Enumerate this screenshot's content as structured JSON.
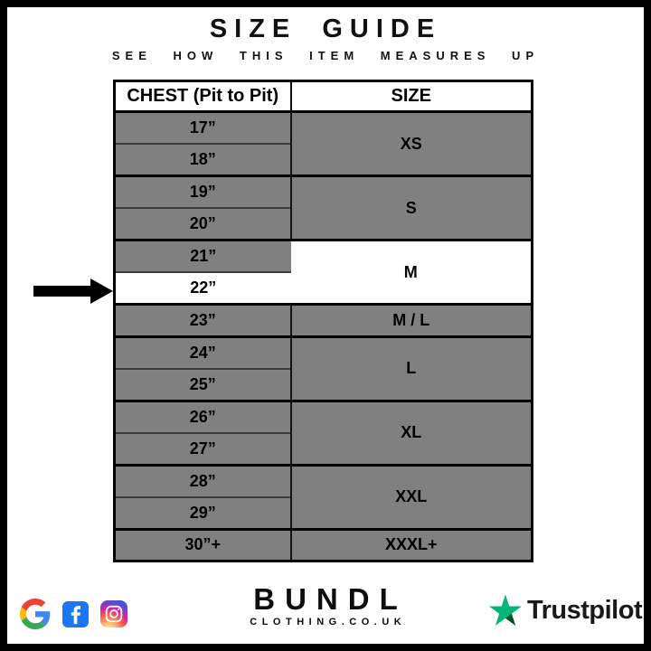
{
  "page": {
    "title": "SIZE GUIDE",
    "subtitle": "SEE HOW THIS ITEM MEASURES UP"
  },
  "size_table": {
    "headers": {
      "chest": "CHEST (Pit to Pit)",
      "size": "SIZE"
    },
    "groups": [
      {
        "chest": [
          "17”",
          "18”"
        ],
        "size": "XS",
        "highlighted": false,
        "highlighted_chest": []
      },
      {
        "chest": [
          "19”",
          "20”"
        ],
        "size": "S",
        "highlighted": false,
        "highlighted_chest": []
      },
      {
        "chest": [
          "21”",
          "22”"
        ],
        "size": "M",
        "highlighted": true,
        "highlighted_chest": [
          "22”"
        ]
      },
      {
        "chest": [
          "23”"
        ],
        "size": "M / L",
        "highlighted": false,
        "highlighted_chest": []
      },
      {
        "chest": [
          "24”",
          "25”"
        ],
        "size": "L",
        "highlighted": false,
        "highlighted_chest": []
      },
      {
        "chest": [
          "26”",
          "27”"
        ],
        "size": "XL",
        "highlighted": false,
        "highlighted_chest": []
      },
      {
        "chest": [
          "28”",
          "29”"
        ],
        "size": "XXL",
        "highlighted": false,
        "highlighted_chest": []
      },
      {
        "chest": [
          "30”+"
        ],
        "size": "XXXL+",
        "highlighted": false,
        "highlighted_chest": []
      }
    ],
    "arrow_points_to": "22”"
  },
  "footer": {
    "social_icons": [
      "google-icon",
      "facebook-icon",
      "instagram-icon"
    ],
    "brand": {
      "name": "BUNDL",
      "tagline": "CLOTHING.CO.UK"
    },
    "trustpilot_label": "Trustpilot"
  },
  "colors": {
    "row_gray": "#808080",
    "highlight_white": "#ffffff",
    "border_black": "#000000",
    "facebook_blue": "#1877F2",
    "trustpilot_green": "#00B67A",
    "trustpilot_green_dark": "#005128",
    "google_blue": "#4285F4",
    "google_red": "#EA4335",
    "google_yellow": "#FBBC05",
    "google_green": "#34A853"
  }
}
